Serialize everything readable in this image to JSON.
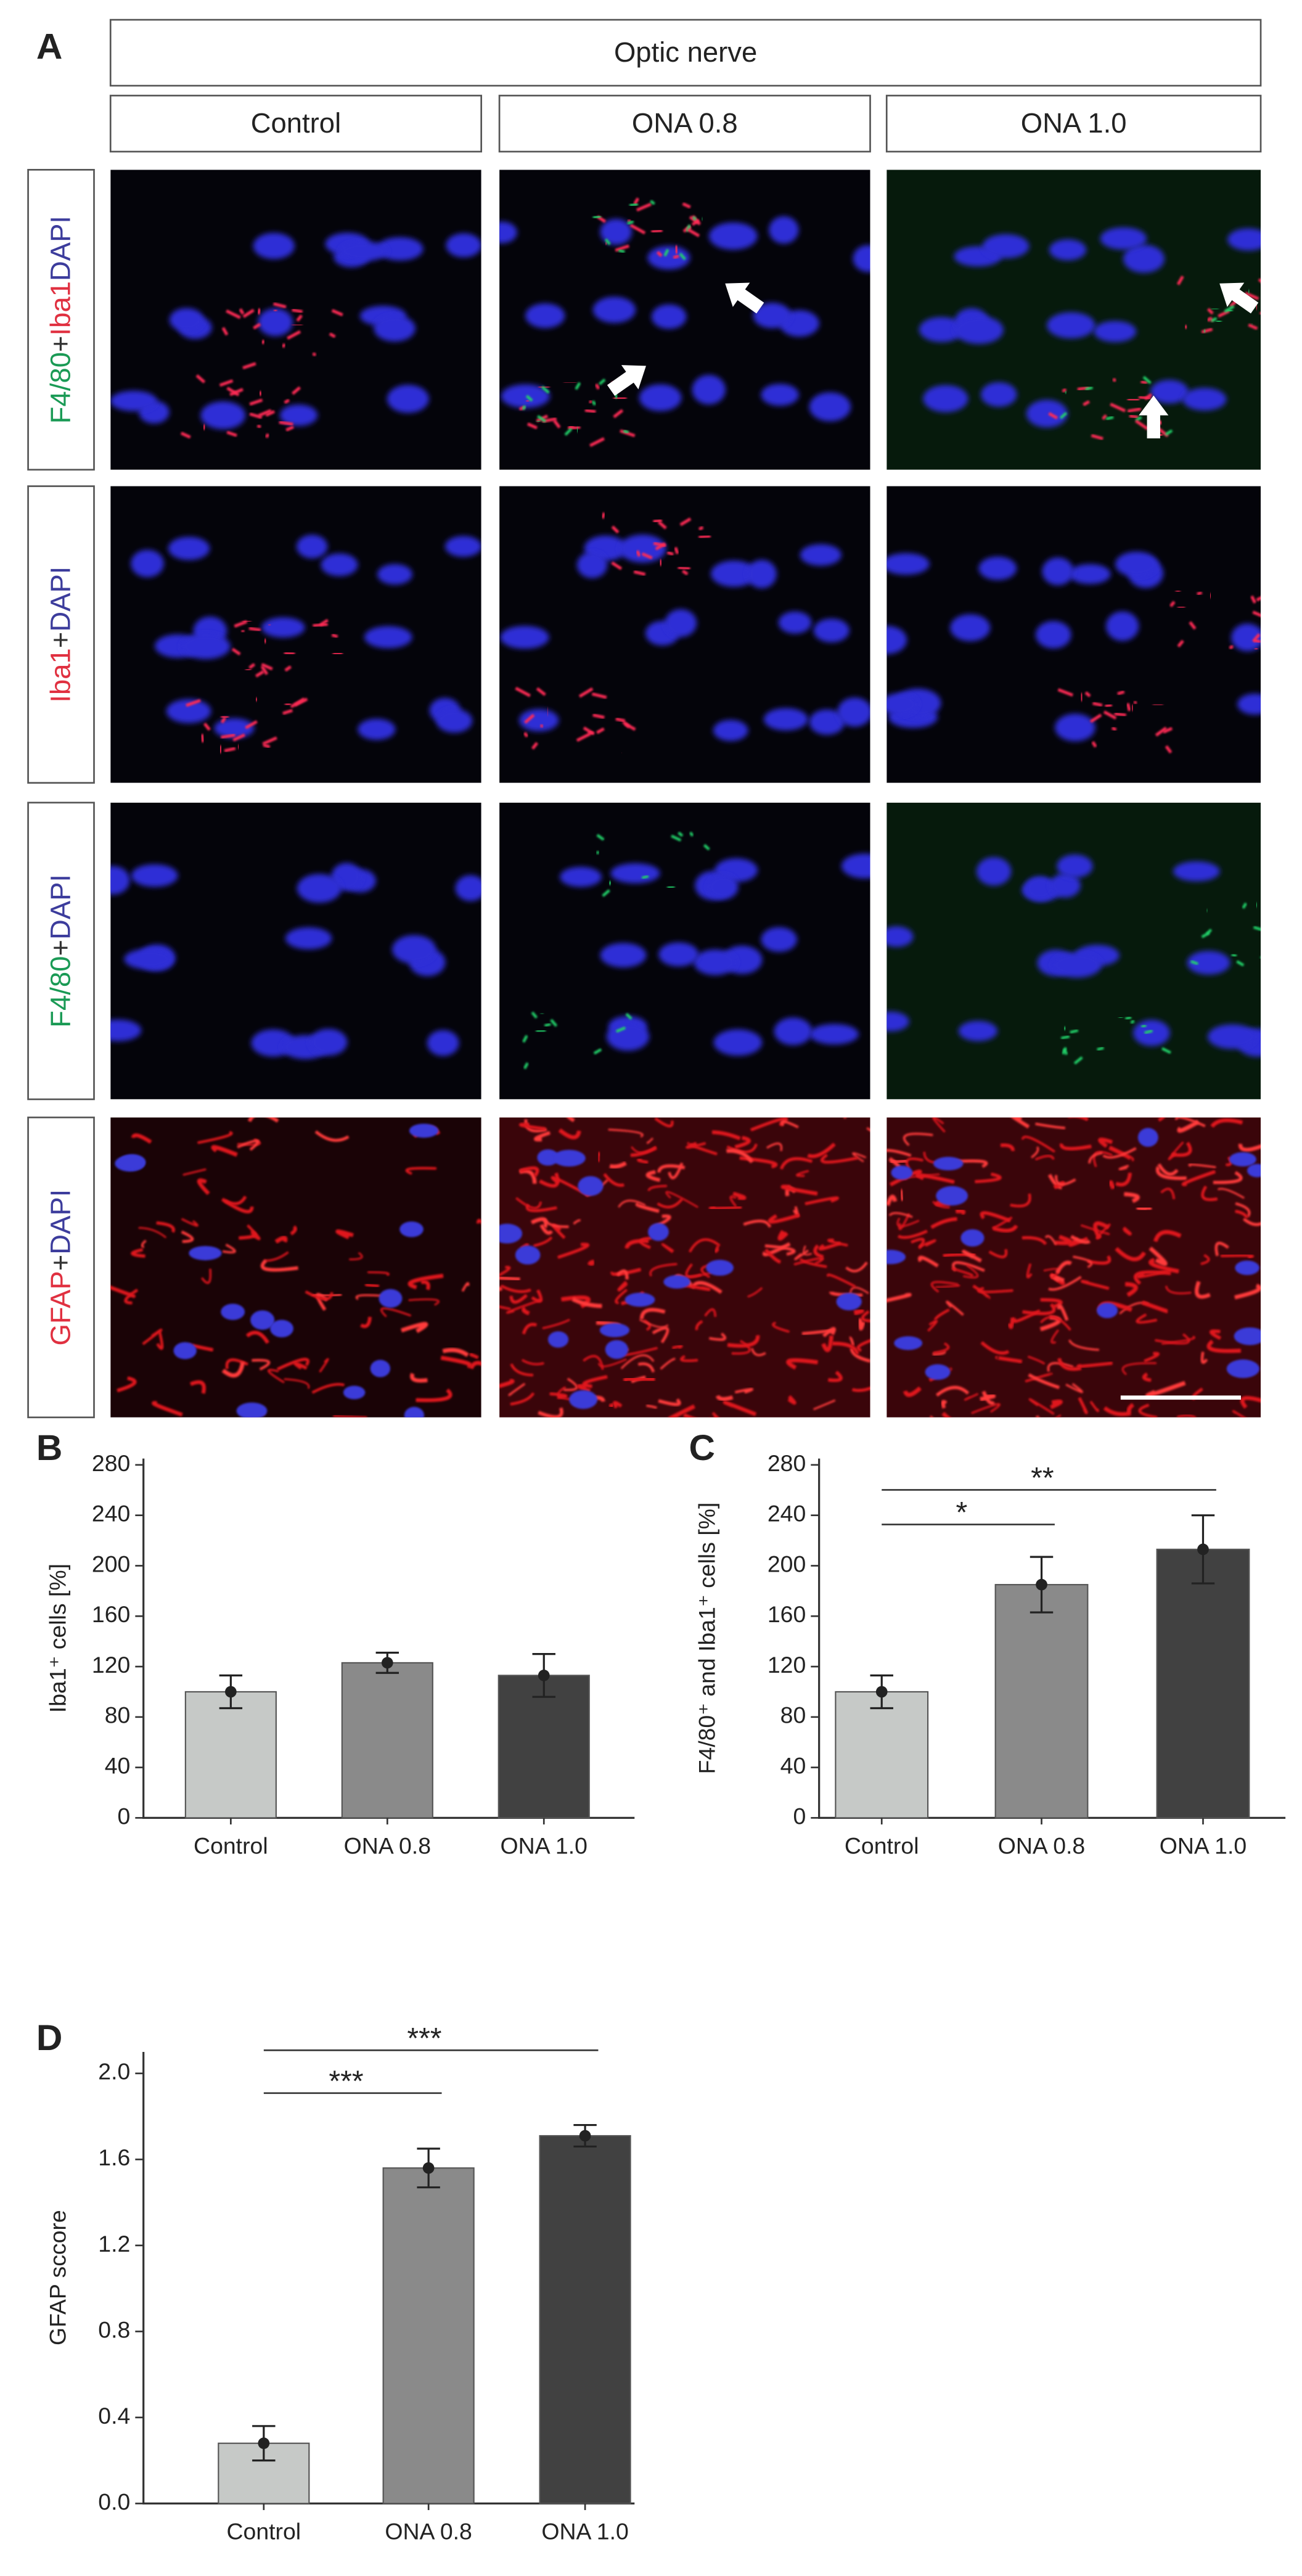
{
  "panel_labels": [
    "A",
    "B",
    "C",
    "D"
  ],
  "panel_a": {
    "title": "Optic nerve",
    "columns": [
      "Control",
      "ONA 0.8",
      "ONA 1.0"
    ],
    "rows": [
      [
        {
          "text": "F4/80",
          "color": "#1a9a55"
        },
        {
          "text": "+",
          "color": "#333333"
        },
        {
          "text": "Iba1",
          "color": "#e03040"
        },
        {
          "text": "DAPI",
          "color": "#3c3c9c"
        }
      ],
      [
        {
          "text": "Iba1",
          "color": "#e03040"
        },
        {
          "text": "+",
          "color": "#333333"
        },
        {
          "text": "DAPI",
          "color": "#3c3c9c"
        }
      ],
      [
        {
          "text": "F4/80",
          "color": "#1a9a55"
        },
        {
          "text": "+",
          "color": "#333333"
        },
        {
          "text": "DAPI",
          "color": "#3c3c9c"
        }
      ],
      [
        {
          "text": "GFAP",
          "color": "#e03040"
        },
        {
          "text": "+",
          "color": "#333333"
        },
        {
          "text": "DAPI",
          "color": "#3c3c9c"
        }
      ]
    ]
  },
  "chart_data": [
    {
      "type": "bar",
      "ylabel": "Iba1⁺ cells [%]",
      "categories": [
        "Control",
        "ONA 0.8",
        "ONA 1.0"
      ],
      "values": [
        100,
        123,
        113
      ],
      "errors": [
        13,
        8,
        17
      ],
      "colors": [
        "#c6c9c7",
        "#8a8a8a",
        "#414141"
      ],
      "ylim": [
        0,
        285
      ],
      "yticks": [
        0,
        40,
        80,
        120,
        160,
        200,
        240,
        280
      ],
      "significance": []
    },
    {
      "type": "bar",
      "ylabel": "F4/80⁺ and Iba1⁺ cells [%]",
      "categories": [
        "Control",
        "ONA 0.8",
        "ONA 1.0"
      ],
      "values": [
        100,
        185,
        213
      ],
      "errors": [
        13,
        22,
        27
      ],
      "colors": [
        "#c6c9c7",
        "#8a8a8a",
        "#414141"
      ],
      "ylim": [
        0,
        285
      ],
      "yticks": [
        0,
        40,
        80,
        120,
        160,
        200,
        240,
        280
      ],
      "significance": [
        {
          "pair": [
            0,
            1
          ],
          "label": "*"
        },
        {
          "pair": [
            0,
            2
          ],
          "label": "**"
        }
      ]
    },
    {
      "type": "bar",
      "ylabel": "GFAP sccore",
      "categories": [
        "Control",
        "ONA 0.8",
        "ONA 1.0"
      ],
      "values": [
        0.28,
        1.56,
        1.71
      ],
      "errors": [
        0.08,
        0.09,
        0.05
      ],
      "colors": [
        "#c6c9c7",
        "#8a8a8a",
        "#414141"
      ],
      "ylim": [
        0,
        2.1
      ],
      "yticks": [
        {
          "value": 0,
          "label": "0.0"
        },
        0.4,
        0.8,
        1.2,
        1.6,
        {
          "value": 2,
          "label": "2.0"
        }
      ],
      "significance": [
        {
          "pair": [
            0,
            1
          ],
          "label": "***"
        },
        {
          "pair": [
            0,
            2
          ],
          "label": "***"
        }
      ]
    }
  ]
}
